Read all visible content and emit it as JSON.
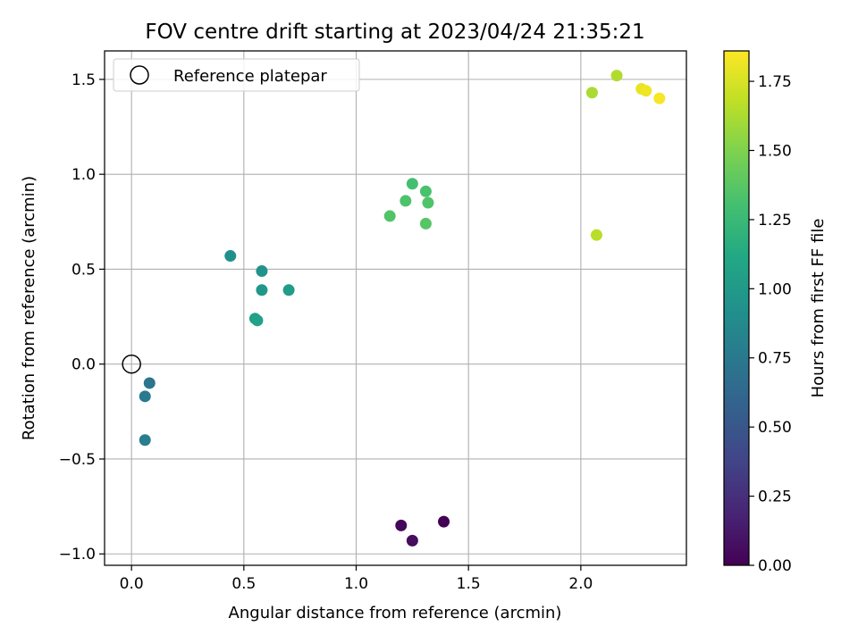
{
  "chart_data": {
    "type": "scatter",
    "title": "FOV centre drift starting at 2023/04/24 21:35:21",
    "xlabel": "Angular distance from reference (arcmin)",
    "ylabel": "Rotation from reference (arcmin)",
    "xlim": [
      -0.12,
      2.47
    ],
    "ylim": [
      -1.06,
      1.65
    ],
    "xticks": [
      0.0,
      0.5,
      1.0,
      1.5,
      2.0
    ],
    "yticks": [
      -1.0,
      -0.5,
      0.0,
      0.5,
      1.0,
      1.5
    ],
    "xtick_labels": [
      "0.0",
      "0.5",
      "1.0",
      "1.5",
      "2.0"
    ],
    "ytick_labels": [
      "−1.0",
      "−0.5",
      "0.0",
      "0.5",
      "1.0",
      "1.5"
    ],
    "grid": true,
    "legend": {
      "position": "top-left",
      "entries": [
        "Reference platepar"
      ]
    },
    "reference_point": {
      "x": 0.0,
      "y": 0.0,
      "label": "Reference platepar"
    },
    "colorbar": {
      "label": "Hours from first FF file",
      "colormap": "viridis",
      "range": [
        0.0,
        1.86
      ],
      "ticks": [
        0.0,
        0.25,
        0.5,
        0.75,
        1.0,
        1.25,
        1.5,
        1.75
      ],
      "tick_labels": [
        "0.00",
        "0.25",
        "0.50",
        "0.75",
        "1.00",
        "1.25",
        "1.50",
        "1.75"
      ]
    },
    "points": [
      {
        "x": 1.39,
        "y": -0.83,
        "hours": 0.0
      },
      {
        "x": 1.2,
        "y": -0.85,
        "hours": 0.03
      },
      {
        "x": 1.25,
        "y": -0.93,
        "hours": 0.06
      },
      {
        "x": 0.08,
        "y": -0.1,
        "hours": 0.72
      },
      {
        "x": 0.06,
        "y": -0.17,
        "hours": 0.75
      },
      {
        "x": 0.06,
        "y": -0.4,
        "hours": 0.78
      },
      {
        "x": 0.44,
        "y": 0.57,
        "hours": 0.92
      },
      {
        "x": 0.58,
        "y": 0.49,
        "hours": 0.95
      },
      {
        "x": 0.58,
        "y": 0.39,
        "hours": 0.98
      },
      {
        "x": 0.7,
        "y": 0.39,
        "hours": 1.02
      },
      {
        "x": 0.55,
        "y": 0.24,
        "hours": 1.05
      },
      {
        "x": 0.56,
        "y": 0.23,
        "hours": 1.06
      },
      {
        "x": 1.25,
        "y": 0.95,
        "hours": 1.3
      },
      {
        "x": 1.31,
        "y": 0.91,
        "hours": 1.32
      },
      {
        "x": 1.22,
        "y": 0.86,
        "hours": 1.33
      },
      {
        "x": 1.32,
        "y": 0.85,
        "hours": 1.34
      },
      {
        "x": 1.15,
        "y": 0.78,
        "hours": 1.35
      },
      {
        "x": 1.31,
        "y": 0.74,
        "hours": 1.36
      },
      {
        "x": 2.05,
        "y": 1.43,
        "hours": 1.62
      },
      {
        "x": 2.16,
        "y": 1.52,
        "hours": 1.64
      },
      {
        "x": 2.07,
        "y": 0.68,
        "hours": 1.66
      },
      {
        "x": 2.27,
        "y": 1.45,
        "hours": 1.8
      },
      {
        "x": 2.29,
        "y": 1.44,
        "hours": 1.82
      },
      {
        "x": 2.35,
        "y": 1.4,
        "hours": 1.84
      }
    ]
  }
}
